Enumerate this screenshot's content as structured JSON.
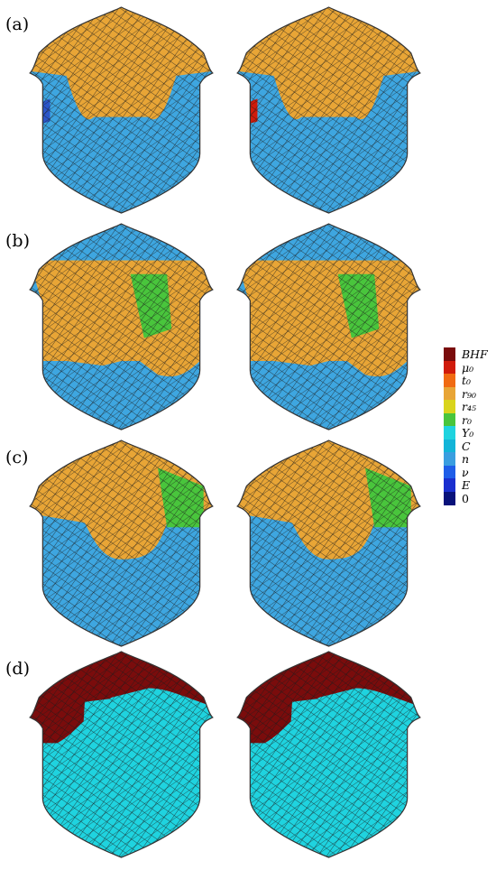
{
  "panels": [
    {
      "label": "(a)",
      "color_left": "#e8a536",
      "color_right": "#e8a536",
      "accent_left": "#2b55c8",
      "accent_right": "#d01b0b"
    },
    {
      "label": "(b)",
      "color_left": "#e8a536",
      "color_right": "#e8a536",
      "accent_left": "#49c53c",
      "accent_right": "#49c53c"
    },
    {
      "label": "(c)",
      "color_left": "#e8a536",
      "color_right": "#e8a536",
      "accent_left": "#49c53c",
      "accent_right": "#49c53c"
    },
    {
      "label": "(d)",
      "color_left": "#7a0c0c",
      "color_right": "#7a0c0c",
      "accent_left": "#1fd3df",
      "accent_right": "#1fd3df"
    }
  ],
  "legend": {
    "items": [
      {
        "label": "BHF",
        "color": "#7a0c0c"
      },
      {
        "label": "μ₀",
        "color": "#d01b0b"
      },
      {
        "label": "t₀",
        "color": "#f06a12"
      },
      {
        "label": "r₉₀",
        "color": "#e8a536"
      },
      {
        "label": "r₄₅",
        "color": "#d9d41c"
      },
      {
        "label": "r₀",
        "color": "#49c53c"
      },
      {
        "label": "Y₀",
        "color": "#1fd3df"
      },
      {
        "label": "C",
        "color": "#13b4d8"
      },
      {
        "label": "n",
        "color": "#3a9ee0"
      },
      {
        "label": "ν",
        "color": "#1f5ee8"
      },
      {
        "label": "E",
        "color": "#1a2fcf"
      },
      {
        "label": "0",
        "color": "#08127a"
      }
    ]
  },
  "colors": {
    "blue_base": "#3ea6e0",
    "cyan": "#1fd3df",
    "orange": "#e8a536",
    "mesh_line": "#1b1b1b"
  }
}
